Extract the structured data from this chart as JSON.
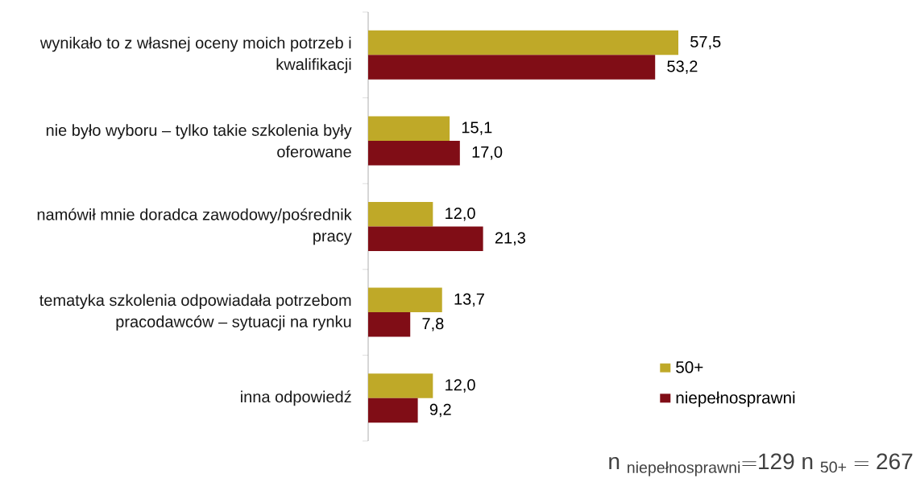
{
  "chart_data": {
    "type": "bar",
    "orientation": "horizontal",
    "categories": [
      "wynikało to z własnej oceny moich potrzeb i kwalifikacji",
      "nie było wyboru – tylko takie szkolenia były oferowane",
      "namówił mnie doradca zawodowy/pośrednik pracy",
      "tematyka szkolenia odpowiadała potrzebom pracodawców – sytuacji na rynku",
      "inna odpowiedź"
    ],
    "series": [
      {
        "name": "50+",
        "color": "#bfa928",
        "values": [
          57.5,
          15.1,
          12.0,
          13.7,
          12.0
        ],
        "value_labels": [
          "57,5",
          "15,1",
          "12,0",
          "13,7",
          "12,0"
        ]
      },
      {
        "name": "niepełnosprawni",
        "color": "#800d16",
        "values": [
          53.2,
          17.0,
          21.3,
          7.8,
          9.2
        ],
        "value_labels": [
          "53,2",
          "17,0",
          "21,3",
          "7,8",
          "9,2"
        ]
      }
    ],
    "tick_labels": "y",
    "legend": "bottom right",
    "annotations": [
      "\\mathrm{n}\\ {}_{\\text{niepełnosprawni}}{=}\\mathrm{129}\\ \\mathrm{n}\\ {}_{\\text{50+}}=\\mathrm{267}"
    ]
  }
}
